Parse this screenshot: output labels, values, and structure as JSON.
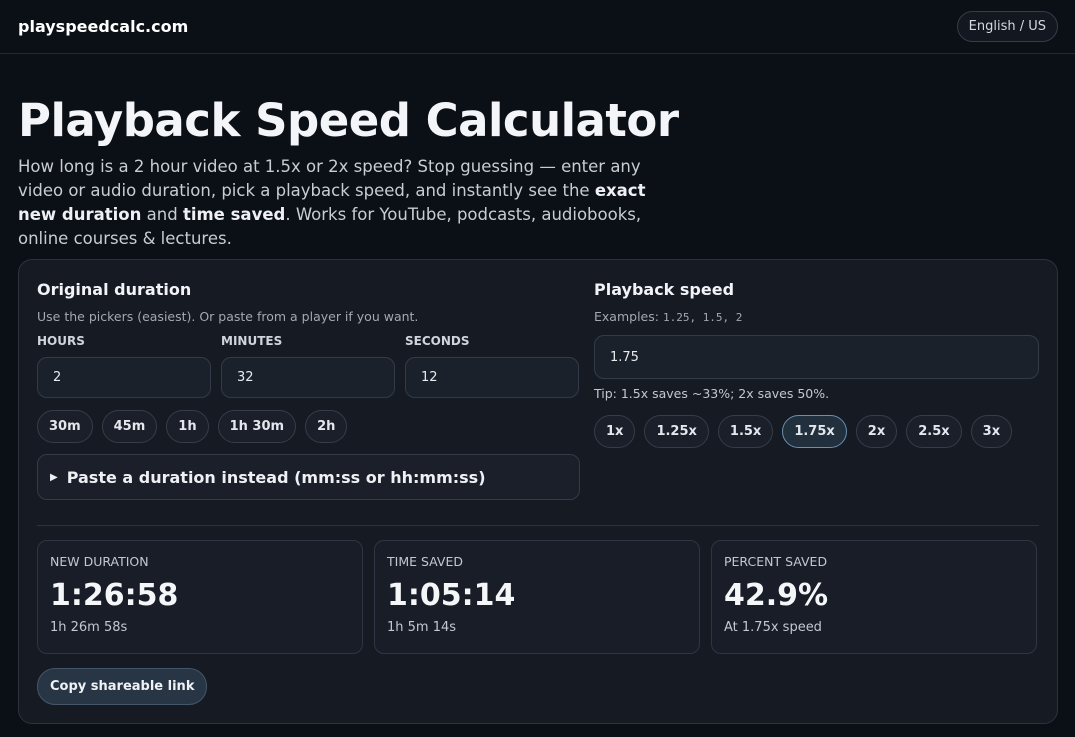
{
  "header": {
    "site": "playspeedcalc.com",
    "language": "English / US"
  },
  "hero": {
    "title": "Playback Speed Calculator",
    "description": [
      "How long is a 2 hour video at 1.5x or 2x speed? Stop guessing — enter any video or audio duration, pick a playback speed, and instantly see the ",
      "exact new duration",
      " and ",
      "time saved",
      ". Works for YouTube, podcasts, audiobooks, online courses & lectures."
    ]
  },
  "duration": {
    "heading": "Original duration",
    "hint": "Use the pickers (easiest). Or paste from a player if you want.",
    "fields": [
      {
        "label": "HOURS",
        "value": "2"
      },
      {
        "label": "MINUTES",
        "value": "32"
      },
      {
        "label": "SECONDS",
        "value": "12"
      }
    ],
    "presets": [
      "30m",
      "45m",
      "1h",
      "1h 30m",
      "2h"
    ],
    "paste": "Paste a duration instead (mm:ss or hh:mm:ss)"
  },
  "speed": {
    "heading": "Playback speed",
    "examples_label": "Examples:",
    "examples": "1.25, 1.5, 2",
    "value": "1.75",
    "tip": "Tip: 1.5x saves ~33%; 2x saves 50%.",
    "options": [
      "1x",
      "1.25x",
      "1.5x",
      "1.75x",
      "2x",
      "2.5x",
      "3x"
    ],
    "active": "1.75x"
  },
  "results": [
    {
      "label": "NEW DURATION",
      "value": "1:26:58",
      "detail": "1h 26m 58s"
    },
    {
      "label": "TIME SAVED",
      "value": "1:05:14",
      "detail": "1h 5m 14s"
    },
    {
      "label": "PERCENT SAVED",
      "value": "42.9%",
      "detail": "At 1.75x speed"
    }
  ],
  "share_button": "Copy shareable link"
}
